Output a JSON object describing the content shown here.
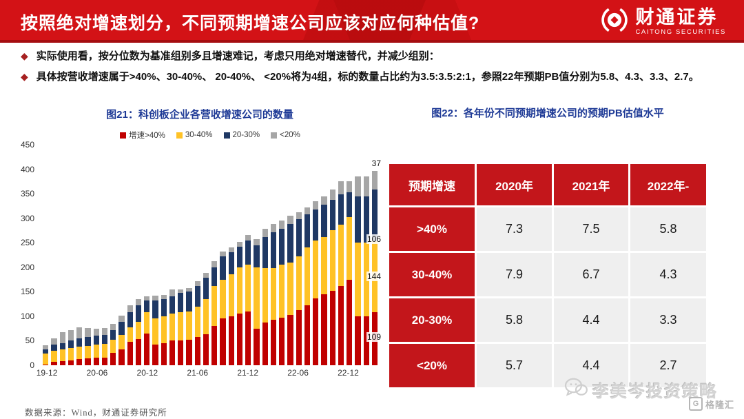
{
  "header": {
    "title": "按照绝对增速划分，不同预期增速公司应该对应何种估值?",
    "logo_cn": "财通证券",
    "logo_en": "CAITONG SECURITIES"
  },
  "bullets": [
    {
      "marker": "◆",
      "text": "实际使用看，按分位数为基准组别多且增速难记，考虑只用绝对增速替代，并减少组别："
    },
    {
      "marker": "◆",
      "text": "具体按营收增速属于>40%、30-40%、 20-40%、 <20%将为4组，标的数量占比约为3.5:3.5:2:1，参照22年预期PB值分别为5.8、4.3、3.3、2.7。"
    }
  ],
  "figure21": {
    "title": "图21：科创板企业各营收增速公司的数量"
  },
  "figure22": {
    "title": "图22：各年份不同预期增速公司的预期PB估值水平"
  },
  "chart_data": {
    "type": "bar",
    "stacked": true,
    "title": "图21：科创板企业各营收增速公司的数量",
    "x": [
      "19-12",
      "20-01",
      "20-02",
      "20-03",
      "20-04",
      "20-05",
      "20-06",
      "20-07",
      "20-08",
      "20-09",
      "20-10",
      "20-11",
      "20-12",
      "21-01",
      "21-02",
      "21-03",
      "21-04",
      "21-05",
      "21-06",
      "21-07",
      "21-08",
      "21-09",
      "21-10",
      "21-11",
      "21-12",
      "22-01",
      "22-02",
      "22-03",
      "22-04",
      "22-05",
      "22-06",
      "22-07",
      "22-08",
      "22-09",
      "22-10",
      "22-11",
      "22-12",
      "23-01",
      "23-02",
      "23-03"
    ],
    "x_tick_indices": [
      0,
      6,
      12,
      18,
      24,
      30,
      36
    ],
    "x_tick_labels": [
      "19-12",
      "20-06",
      "20-12",
      "21-06",
      "21-12",
      "22-06",
      "22-12"
    ],
    "ylim": [
      0,
      450
    ],
    "y_ticks": [
      0,
      50,
      100,
      150,
      200,
      250,
      300,
      350,
      400,
      450
    ],
    "grid": false,
    "legend_position": "top",
    "series": [
      {
        "name": "增速>40%",
        "color": "#C00000",
        "values": [
          2,
          7,
          8,
          10,
          13,
          14,
          15,
          16,
          26,
          33,
          48,
          53,
          65,
          42,
          45,
          50,
          50,
          52,
          57,
          64,
          80,
          95,
          100,
          105,
          110,
          75,
          87,
          93,
          97,
          103,
          112,
          123,
          137,
          145,
          152,
          162,
          175,
          100,
          100,
          109
        ]
      },
      {
        "name": "30-40%",
        "color": "#FFC226",
        "values": [
          22,
          23,
          24,
          25,
          25,
          26,
          27,
          28,
          26,
          29,
          30,
          35,
          43,
          53,
          55,
          55,
          58,
          58,
          63,
          71,
          82,
          80,
          85,
          95,
          95,
          125,
          111,
          105,
          108,
          107,
          110,
          117,
          118,
          117,
          123,
          125,
          128,
          150,
          150,
          144
        ]
      },
      {
        "name": "20-30%",
        "color": "#1F3864",
        "values": [
          9,
          12,
          13,
          15,
          17,
          18,
          18,
          18,
          20,
          26,
          30,
          34,
          24,
          37,
          35,
          35,
          40,
          40,
          42,
          43,
          38,
          47,
          45,
          42,
          50,
          45,
          64,
          74,
          73,
          78,
          76,
          68,
          63,
          66,
          63,
          62,
          50,
          95,
          95,
          106
        ]
      },
      {
        "name": "<20%",
        "color": "#A6A6A6",
        "values": [
          8,
          13,
          22,
          22,
          23,
          18,
          14,
          14,
          13,
          14,
          14,
          13,
          8,
          10,
          8,
          15,
          7,
          8,
          10,
          10,
          12,
          10,
          10,
          10,
          11,
          13,
          16,
          16,
          17,
          17,
          14,
          14,
          17,
          17,
          20,
          26,
          22,
          40,
          41,
          37
        ]
      }
    ],
    "last_bar_labels": [
      {
        "text": "37",
        "value": 412
      },
      {
        "text": "106",
        "value": 258
      },
      {
        "text": "144",
        "value": 181
      },
      {
        "text": "109",
        "value": 57
      }
    ]
  },
  "table": {
    "corner": "预期增速",
    "year_headers": [
      "2020年",
      "2021年",
      "2022年-"
    ],
    "rows": [
      {
        "label": ">40%",
        "values": [
          "7.3",
          "7.5",
          "5.8"
        ]
      },
      {
        "label": "30-40%",
        "values": [
          "7.9",
          "6.7",
          "4.3"
        ]
      },
      {
        "label": "20-30%",
        "values": [
          "5.8",
          "4.4",
          "3.3"
        ]
      },
      {
        "label": "<20%",
        "values": [
          "5.7",
          "4.4",
          "2.7"
        ]
      }
    ]
  },
  "footer": {
    "source": "数据来源：Wind，财通证券研究所"
  },
  "watermark": {
    "wechat_account": "李美岑投资策略",
    "brand": "格隆汇",
    "brand_initial": "G"
  },
  "colors": {
    "banner_red": "#D31216",
    "table_red": "#C3161B",
    "title_blue": "#1E3A96"
  }
}
